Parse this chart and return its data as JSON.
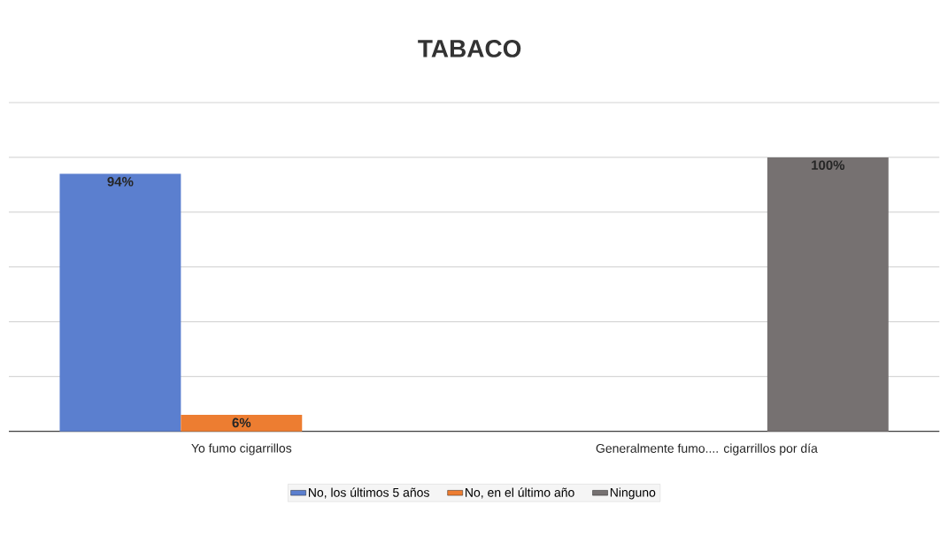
{
  "chart_data": {
    "type": "bar",
    "title": "TABACO",
    "categories": [
      "Yo fumo cigarrillos",
      "Generalmente fumo.... cigarrillos por día"
    ],
    "series": [
      {
        "name": "No, los últimos 5 años",
        "color": "#5b7fcf",
        "values": [
          94,
          null
        ],
        "value_labels": [
          "94%",
          null
        ]
      },
      {
        "name": "No, en el último año",
        "color": "#ed7d31",
        "values": [
          6,
          null
        ],
        "value_labels": [
          "6%",
          null
        ]
      },
      {
        "name": "Ninguno",
        "color": "#767171",
        "values": [
          null,
          100
        ],
        "value_labels": [
          null,
          "100%"
        ]
      }
    ],
    "ylim": [
      0,
      120
    ],
    "yticks": [
      {
        "value": 0,
        "label": null
      },
      {
        "value": 20,
        "label": null
      },
      {
        "value": 40,
        "label": null
      },
      {
        "value": 60,
        "label": null
      },
      {
        "value": 80,
        "label": null
      },
      {
        "value": 100,
        "label": null
      },
      {
        "value": 120,
        "label": null
      }
    ],
    "grid": "y",
    "legend": "bottom",
    "tick_labels": "x"
  }
}
